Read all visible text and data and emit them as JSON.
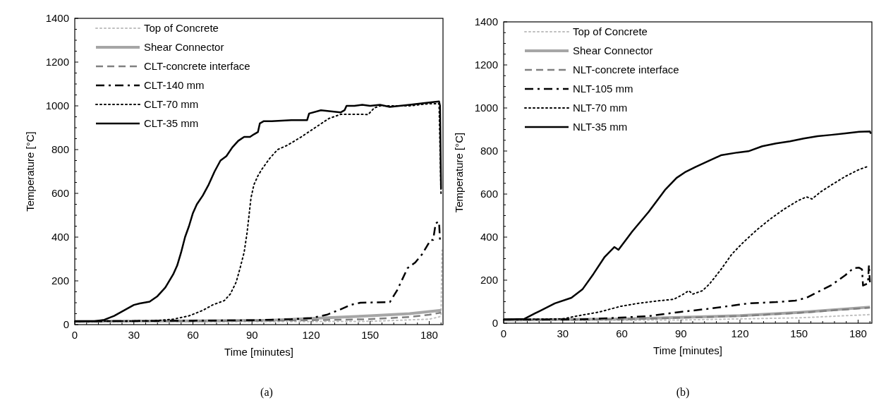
{
  "chart_data": [
    {
      "type": "line",
      "xlabel": "Time [minutes]",
      "ylabel": "Temperature [°C]",
      "annotations": [
        "(a)"
      ],
      "legend": "top left",
      "xlim": [
        0,
        187
      ],
      "ylim": [
        0,
        1400
      ],
      "xticks": [
        0,
        {
          "value": 6,
          "label": null
        },
        {
          "value": 12,
          "label": null
        },
        {
          "value": 18,
          "label": null
        },
        {
          "value": 24,
          "label": null
        },
        30,
        {
          "value": 36,
          "label": null
        },
        {
          "value": 42,
          "label": null
        },
        {
          "value": 48,
          "label": null
        },
        {
          "value": 54,
          "label": null
        },
        60,
        {
          "value": 66,
          "label": null
        },
        {
          "value": 72,
          "label": null
        },
        {
          "value": 78,
          "label": null
        },
        {
          "value": 84,
          "label": null
        },
        90,
        {
          "value": 96,
          "label": null
        },
        {
          "value": 102,
          "label": null
        },
        {
          "value": 108,
          "label": null
        },
        {
          "value": 114,
          "label": null
        },
        120,
        {
          "value": 126,
          "label": null
        },
        {
          "value": 132,
          "label": null
        },
        {
          "value": 138,
          "label": null
        },
        {
          "value": 144,
          "label": null
        },
        150,
        {
          "value": 156,
          "label": null
        },
        {
          "value": 162,
          "label": null
        },
        {
          "value": 168,
          "label": null
        },
        {
          "value": 174,
          "label": null
        },
        180,
        {
          "value": 186,
          "label": null
        }
      ],
      "yticks": [
        0,
        {
          "value": 50,
          "label": null
        },
        {
          "value": 100,
          "label": null
        },
        {
          "value": 150,
          "label": null
        },
        200,
        {
          "value": 250,
          "label": null
        },
        {
          "value": 300,
          "label": null
        },
        {
          "value": 350,
          "label": null
        },
        400,
        {
          "value": 450,
          "label": null
        },
        {
          "value": 500,
          "label": null
        },
        {
          "value": 550,
          "label": null
        },
        600,
        {
          "value": 650,
          "label": null
        },
        {
          "value": 700,
          "label": null
        },
        {
          "value": 750,
          "label": null
        },
        800,
        {
          "value": 850,
          "label": null
        },
        {
          "value": 900,
          "label": null
        },
        {
          "value": 950,
          "label": null
        },
        1000,
        {
          "value": 1050,
          "label": null
        },
        {
          "value": 1100,
          "label": null
        },
        {
          "value": 1150,
          "label": null
        },
        1200,
        {
          "value": 1250,
          "label": null
        },
        {
          "value": 1300,
          "label": null
        },
        {
          "value": 1350,
          "label": null
        },
        1400
      ],
      "series": [
        {
          "name": "Top of Concrete",
          "color": "#bfbfbf",
          "line_style": "dotted",
          "x": [
            0,
            60,
            120,
            150,
            180,
            185,
            186,
            186.5
          ],
          "values": [
            12,
            13,
            14,
            15,
            25,
            35,
            40,
            340
          ]
        },
        {
          "name": "Shear Connector",
          "color": "#a6a6a6",
          "line_style": "solid",
          "x": [
            0,
            60,
            100,
            120,
            150,
            170,
            186
          ],
          "values": [
            15,
            17,
            20,
            28,
            40,
            50,
            65
          ]
        },
        {
          "name": "CLT-concrete interface",
          "color": "#808080",
          "line_style": "dashed",
          "x": [
            0,
            60,
            120,
            150,
            170,
            180,
            186
          ],
          "values": [
            15,
            16,
            20,
            25,
            35,
            45,
            55
          ]
        },
        {
          "name": "CLT-140 mm",
          "color": "#000000",
          "line_style": "dashdot",
          "x": [
            0,
            60,
            90,
            110,
            120,
            128,
            135,
            140,
            145,
            160,
            163.6,
            169,
            172.9,
            176.4,
            180.7,
            182,
            183.3,
            185,
            185.5
          ],
          "values": [
            15,
            18,
            20,
            25,
            30,
            45,
            70,
            90,
            100,
            103,
            155,
            258,
            284,
            322,
            387,
            387,
            464,
            470,
            380
          ]
        },
        {
          "name": "CLT-70 mm",
          "color": "#000000",
          "line_style": "dotted",
          "x": [
            0,
            40,
            50,
            58,
            65,
            70,
            76,
            79,
            82,
            84,
            86,
            87.5,
            88.5,
            89.5,
            91,
            93,
            95,
            99,
            103,
            108,
            115,
            122,
            129,
            135,
            146,
            149,
            152,
            155,
            170,
            180,
            185,
            186
          ],
          "values": [
            15,
            17,
            25,
            40,
            65,
            90,
            110,
            140,
            195,
            260,
            330,
            420,
            500,
            580,
            640,
            680,
            710,
            760,
            800,
            820,
            858,
            900,
            942,
            961,
            961,
            960,
            990,
            1000,
            1000,
            1010,
            1010,
            600
          ]
        },
        {
          "name": "CLT-35 mm",
          "color": "#000000",
          "line_style": "solid",
          "x": [
            0,
            10,
            15,
            20,
            25,
            30,
            33,
            38,
            42,
            46,
            50,
            52,
            54,
            56,
            58,
            60,
            62,
            65,
            68,
            71,
            74,
            77,
            80,
            83,
            86,
            89,
            91,
            93,
            94,
            96,
            100,
            110,
            118,
            119,
            125,
            130,
            135,
            137,
            138,
            142,
            146,
            150,
            155,
            160,
            170,
            180,
            185,
            185.5,
            186
          ],
          "values": [
            15,
            15,
            22,
            40,
            65,
            90,
            97,
            105,
            130,
            170,
            230,
            270,
            330,
            400,
            450,
            510,
            550,
            590,
            640,
            700,
            750,
            770,
            810,
            840,
            858,
            858,
            870,
            880,
            920,
            930,
            930,
            935,
            935,
            965,
            980,
            975,
            970,
            980,
            1000,
            1000,
            1005,
            1000,
            1005,
            995,
            1005,
            1015,
            1020,
            1000,
            620
          ]
        }
      ]
    },
    {
      "type": "line",
      "xlabel": "Time [minutes]",
      "ylabel": "Temperature [°C]",
      "annotations": [
        "(b)"
      ],
      "legend": "top left",
      "xlim": [
        0,
        187
      ],
      "ylim": [
        0,
        1400
      ],
      "xticks": [
        0,
        {
          "value": 6,
          "label": null
        },
        {
          "value": 12,
          "label": null
        },
        {
          "value": 18,
          "label": null
        },
        {
          "value": 24,
          "label": null
        },
        30,
        {
          "value": 36,
          "label": null
        },
        {
          "value": 42,
          "label": null
        },
        {
          "value": 48,
          "label": null
        },
        {
          "value": 54,
          "label": null
        },
        60,
        {
          "value": 66,
          "label": null
        },
        {
          "value": 72,
          "label": null
        },
        {
          "value": 78,
          "label": null
        },
        {
          "value": 84,
          "label": null
        },
        90,
        {
          "value": 96,
          "label": null
        },
        {
          "value": 102,
          "label": null
        },
        {
          "value": 108,
          "label": null
        },
        {
          "value": 114,
          "label": null
        },
        120,
        {
          "value": 126,
          "label": null
        },
        {
          "value": 132,
          "label": null
        },
        {
          "value": 138,
          "label": null
        },
        {
          "value": 144,
          "label": null
        },
        150,
        {
          "value": 156,
          "label": null
        },
        {
          "value": 162,
          "label": null
        },
        {
          "value": 168,
          "label": null
        },
        {
          "value": 174,
          "label": null
        },
        180,
        {
          "value": 186,
          "label": null
        }
      ],
      "yticks": [
        0,
        {
          "value": 50,
          "label": null
        },
        {
          "value": 100,
          "label": null
        },
        {
          "value": 150,
          "label": null
        },
        200,
        {
          "value": 250,
          "label": null
        },
        {
          "value": 300,
          "label": null
        },
        {
          "value": 350,
          "label": null
        },
        400,
        {
          "value": 450,
          "label": null
        },
        {
          "value": 500,
          "label": null
        },
        {
          "value": 550,
          "label": null
        },
        600,
        {
          "value": 650,
          "label": null
        },
        {
          "value": 700,
          "label": null
        },
        {
          "value": 750,
          "label": null
        },
        800,
        {
          "value": 850,
          "label": null
        },
        {
          "value": 900,
          "label": null
        },
        {
          "value": 950,
          "label": null
        },
        1000,
        {
          "value": 1050,
          "label": null
        },
        {
          "value": 1100,
          "label": null
        },
        {
          "value": 1150,
          "label": null
        },
        1200,
        {
          "value": 1250,
          "label": null
        },
        {
          "value": 1300,
          "label": null
        },
        {
          "value": 1350,
          "label": null
        },
        1400
      ],
      "series": [
        {
          "name": "Top of Concrete",
          "color": "#bfbfbf",
          "line_style": "dotted",
          "x": [
            0,
            90,
            150,
            186
          ],
          "values": [
            12,
            15,
            25,
            40
          ]
        },
        {
          "name": "Shear Connector",
          "color": "#a6a6a6",
          "line_style": "solid",
          "x": [
            0,
            60,
            120,
            150,
            186
          ],
          "values": [
            15,
            20,
            35,
            50,
            75
          ]
        },
        {
          "name": "NLT-concrete interface",
          "color": "#808080",
          "line_style": "dashed",
          "x": [
            0,
            60,
            120,
            150,
            186
          ],
          "values": [
            15,
            18,
            33,
            48,
            72
          ]
        },
        {
          "name": "NLT-105 mm",
          "color": "#000000",
          "line_style": "dashdot",
          "x": [
            0,
            40,
            59.7,
            73.7,
            89.2,
            103.2,
            124.3,
            138.3,
            148.2,
            153.8,
            160.8,
            166.4,
            173.5,
            177.7,
            180.5,
            182,
            182.5,
            185,
            185.5,
            186
          ],
          "values": [
            17,
            18,
            26,
            33,
            52,
            66,
            92,
            98,
            105,
            118,
            151,
            177,
            223,
            256,
            258,
            250,
            175,
            185,
            270,
            190
          ]
        },
        {
          "name": "NLT-70 mm",
          "color": "#000000",
          "line_style": "dotted",
          "x": [
            0,
            30,
            37,
            48.5,
            59.7,
            68,
            76.5,
            86.4,
            90.6,
            94,
            96,
            101,
            104.6,
            110.3,
            115.9,
            121.5,
            128.5,
            135.5,
            142.6,
            149.6,
            153.8,
            156.6,
            160.8,
            166.4,
            173.5,
            180.5,
            185.4
          ],
          "values": [
            17,
            20,
            33,
            52,
            79,
            92,
            102,
            111,
            131,
            151,
            135,
            151,
            183,
            249,
            321,
            374,
            433,
            485,
            531,
            570,
            587,
            577,
            609,
            642,
            682,
            714,
            730
          ]
        },
        {
          "name": "NLT-35 mm",
          "color": "#000000",
          "line_style": "solid",
          "x": [
            0,
            10.5,
            16,
            26,
            34.4,
            40,
            45.6,
            51.3,
            56.2,
            58.3,
            65.3,
            73.7,
            82.2,
            87.8,
            92,
            97.6,
            104.6,
            110.3,
            118.7,
            124.3,
            131.3,
            138.3,
            145.4,
            152.4,
            159.4,
            166.4,
            173.5,
            180.5,
            186,
            186.5
          ],
          "values": [
            17,
            20,
            46,
            92,
            118,
            157,
            229,
            308,
            354,
            341,
            426,
            518,
            622,
            675,
            701,
            727,
            756,
            780,
            793,
            799,
            822,
            835,
            845,
            858,
            869,
            875,
            882,
            889,
            891,
            880
          ]
        }
      ]
    }
  ]
}
